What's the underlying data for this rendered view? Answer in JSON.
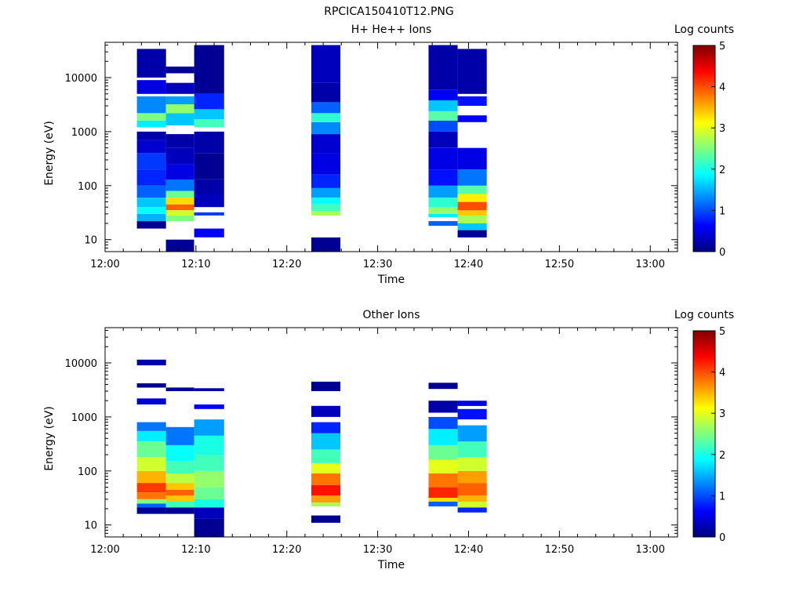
{
  "title": "RPCICA150410T12.PNG",
  "colorscale": [
    "#00007f",
    "#0000ff",
    "#007fff",
    "#00ffff",
    "#7fff7f",
    "#ffff00",
    "#ff7f00",
    "#ff0000",
    "#7f0000"
  ],
  "chart_data": [
    {
      "type": "heatmap",
      "title": "H+ He++ Ions",
      "xlabel": "Time",
      "ylabel": "Energy (eV)",
      "xticks": [
        "12:00",
        "12:10",
        "12:20",
        "12:30",
        "12:40",
        "12:50",
        "13:00"
      ],
      "xlim": [
        "12:00",
        "13:03"
      ],
      "ylog": true,
      "yticks": [
        "10",
        "100",
        "1000",
        "10000"
      ],
      "ylim": [
        6,
        45000
      ],
      "colorbar": {
        "label": "Log counts",
        "range": [
          0,
          5
        ],
        "ticks": [
          "0",
          "1",
          "2",
          "3",
          "4",
          "5"
        ]
      },
      "columns": [
        {
          "start": "12:03.5",
          "end": "12:06.7",
          "cells": [
            {
              "emin": 16,
              "emax": 22,
              "v": 0.1
            },
            {
              "emin": 22,
              "emax": 30,
              "v": 1.5
            },
            {
              "emin": 30,
              "emax": 40,
              "v": 1.9
            },
            {
              "emin": 40,
              "emax": 60,
              "v": 1.6
            },
            {
              "emin": 60,
              "emax": 100,
              "v": 1.1
            },
            {
              "emin": 100,
              "emax": 200,
              "v": 0.8
            },
            {
              "emin": 200,
              "emax": 400,
              "v": 0.9
            },
            {
              "emin": 400,
              "emax": 700,
              "v": 0.4
            },
            {
              "emin": 700,
              "emax": 1000,
              "v": 0.2
            },
            {
              "emin": 1200,
              "emax": 1600,
              "v": 1.8
            },
            {
              "emin": 1600,
              "emax": 2200,
              "v": 2.5
            },
            {
              "emin": 2200,
              "emax": 4500,
              "v": 1.3
            },
            {
              "emin": 5000,
              "emax": 9000,
              "v": 0.5
            },
            {
              "emin": 10000,
              "emax": 34000,
              "v": 0.2
            }
          ]
        },
        {
          "start": "12:06.7",
          "end": "12:09.8",
          "cells": [
            {
              "emin": 6,
              "emax": 10,
              "v": 0.1
            },
            {
              "emin": 22,
              "emax": 28,
              "v": 2.5
            },
            {
              "emin": 28,
              "emax": 35,
              "v": 2.9
            },
            {
              "emin": 35,
              "emax": 45,
              "v": 3.9
            },
            {
              "emin": 45,
              "emax": 60,
              "v": 3.3
            },
            {
              "emin": 60,
              "emax": 80,
              "v": 2.4
            },
            {
              "emin": 80,
              "emax": 130,
              "v": 1.2
            },
            {
              "emin": 130,
              "emax": 250,
              "v": 0.5
            },
            {
              "emin": 250,
              "emax": 500,
              "v": 0.3
            },
            {
              "emin": 500,
              "emax": 900,
              "v": 0.2
            },
            {
              "emin": 1300,
              "emax": 2200,
              "v": 1.6
            },
            {
              "emin": 2200,
              "emax": 3200,
              "v": 2.6
            },
            {
              "emin": 3200,
              "emax": 4500,
              "v": 1.4
            },
            {
              "emin": 5000,
              "emax": 8000,
              "v": 0.3
            },
            {
              "emin": 12000,
              "emax": 16000,
              "v": 0.1
            }
          ]
        },
        {
          "start": "12:09.8",
          "end": "12:13.1",
          "cells": [
            {
              "emin": 11,
              "emax": 16,
              "v": 0.6
            },
            {
              "emin": 28,
              "emax": 32,
              "v": 0.9
            },
            {
              "emin": 40,
              "emax": 70,
              "v": 0.3
            },
            {
              "emin": 70,
              "emax": 130,
              "v": 0.2
            },
            {
              "emin": 130,
              "emax": 400,
              "v": 0.1
            },
            {
              "emin": 400,
              "emax": 1000,
              "v": 0.2
            },
            {
              "emin": 1200,
              "emax": 1700,
              "v": 2.2
            },
            {
              "emin": 1700,
              "emax": 2600,
              "v": 1.6
            },
            {
              "emin": 2600,
              "emax": 5000,
              "v": 0.8
            },
            {
              "emin": 5000,
              "emax": 40000,
              "v": 0.1
            }
          ]
        },
        {
          "start": "12:22.7",
          "end": "12:25.9",
          "cells": [
            {
              "emin": 6,
              "emax": 11,
              "v": 0.1
            },
            {
              "emin": 28,
              "emax": 34,
              "v": 2.7
            },
            {
              "emin": 34,
              "emax": 45,
              "v": 2.2
            },
            {
              "emin": 45,
              "emax": 60,
              "v": 1.9
            },
            {
              "emin": 60,
              "emax": 90,
              "v": 1.4
            },
            {
              "emin": 90,
              "emax": 160,
              "v": 0.8
            },
            {
              "emin": 160,
              "emax": 400,
              "v": 0.5
            },
            {
              "emin": 400,
              "emax": 900,
              "v": 0.4
            },
            {
              "emin": 900,
              "emax": 1500,
              "v": 1.3
            },
            {
              "emin": 1500,
              "emax": 2200,
              "v": 2.1
            },
            {
              "emin": 2200,
              "emax": 3500,
              "v": 1.1
            },
            {
              "emin": 3500,
              "emax": 8000,
              "v": 0.2
            },
            {
              "emin": 8000,
              "emax": 40000,
              "v": 0.3
            }
          ]
        },
        {
          "start": "12:35.6",
          "end": "12:38.8",
          "cells": [
            {
              "emin": 18,
              "emax": 22,
              "v": 1.1
            },
            {
              "emin": 26,
              "emax": 30,
              "v": 1.8
            },
            {
              "emin": 30,
              "emax": 40,
              "v": 2.6
            },
            {
              "emin": 40,
              "emax": 60,
              "v": 2.1
            },
            {
              "emin": 60,
              "emax": 100,
              "v": 1.4
            },
            {
              "emin": 100,
              "emax": 200,
              "v": 0.7
            },
            {
              "emin": 200,
              "emax": 500,
              "v": 0.5
            },
            {
              "emin": 500,
              "emax": 1000,
              "v": 0.3
            },
            {
              "emin": 1000,
              "emax": 1600,
              "v": 1.0
            },
            {
              "emin": 1600,
              "emax": 2400,
              "v": 2.3
            },
            {
              "emin": 2400,
              "emax": 3800,
              "v": 1.6
            },
            {
              "emin": 3800,
              "emax": 6000,
              "v": 0.6
            },
            {
              "emin": 6000,
              "emax": 40000,
              "v": 0.2
            }
          ]
        },
        {
          "start": "12:38.8",
          "end": "12:42.0",
          "cells": [
            {
              "emin": 11,
              "emax": 15,
              "v": 0.1
            },
            {
              "emin": 15,
              "emax": 20,
              "v": 1.6
            },
            {
              "emin": 20,
              "emax": 28,
              "v": 2.7
            },
            {
              "emin": 28,
              "emax": 35,
              "v": 3.4
            },
            {
              "emin": 35,
              "emax": 50,
              "v": 4.0
            },
            {
              "emin": 50,
              "emax": 70,
              "v": 3.2
            },
            {
              "emin": 70,
              "emax": 100,
              "v": 2.3
            },
            {
              "emin": 100,
              "emax": 200,
              "v": 1.2
            },
            {
              "emin": 200,
              "emax": 500,
              "v": 0.5
            },
            {
              "emin": 1500,
              "emax": 2000,
              "v": 0.6
            },
            {
              "emin": 3000,
              "emax": 4500,
              "v": 0.7
            },
            {
              "emin": 5000,
              "emax": 34000,
              "v": 0.2
            }
          ]
        }
      ]
    },
    {
      "type": "heatmap",
      "title": "Other Ions",
      "xlabel": "Time",
      "ylabel": "Energy (eV)",
      "xticks": [
        "12:00",
        "12:10",
        "12:20",
        "12:30",
        "12:40",
        "12:50",
        "13:00"
      ],
      "xlim": [
        "12:00",
        "13:03"
      ],
      "ylog": true,
      "yticks": [
        "10",
        "100",
        "1000",
        "10000"
      ],
      "ylim": [
        6,
        45000
      ],
      "colorbar": {
        "label": "Log counts",
        "range": [
          0,
          5
        ],
        "ticks": [
          "0",
          "1",
          "2",
          "3",
          "4",
          "5"
        ]
      },
      "columns": [
        {
          "start": "12:03.5",
          "end": "12:06.7",
          "cells": [
            {
              "emin": 16,
              "emax": 21,
              "v": 0.1
            },
            {
              "emin": 21,
              "emax": 25,
              "v": 1.1
            },
            {
              "emin": 25,
              "emax": 30,
              "v": 2.5
            },
            {
              "emin": 30,
              "emax": 40,
              "v": 3.8
            },
            {
              "emin": 40,
              "emax": 60,
              "v": 4.1
            },
            {
              "emin": 60,
              "emax": 100,
              "v": 3.5
            },
            {
              "emin": 100,
              "emax": 180,
              "v": 2.9
            },
            {
              "emin": 180,
              "emax": 350,
              "v": 2.4
            },
            {
              "emin": 350,
              "emax": 550,
              "v": 1.8
            },
            {
              "emin": 550,
              "emax": 800,
              "v": 1.2
            },
            {
              "emin": 1700,
              "emax": 2200,
              "v": 0.4
            },
            {
              "emin": 3500,
              "emax": 4200,
              "v": 0.1
            },
            {
              "emin": 9000,
              "emax": 11500,
              "v": 0.2
            }
          ]
        },
        {
          "start": "12:06.7",
          "end": "12:09.8",
          "cells": [
            {
              "emin": 16,
              "emax": 21,
              "v": 0.1
            },
            {
              "emin": 21,
              "emax": 27,
              "v": 2.2
            },
            {
              "emin": 27,
              "emax": 35,
              "v": 3.4
            },
            {
              "emin": 35,
              "emax": 45,
              "v": 3.9
            },
            {
              "emin": 45,
              "emax": 60,
              "v": 3.4
            },
            {
              "emin": 60,
              "emax": 90,
              "v": 2.8
            },
            {
              "emin": 90,
              "emax": 150,
              "v": 2.2
            },
            {
              "emin": 150,
              "emax": 300,
              "v": 1.9
            },
            {
              "emin": 300,
              "emax": 650,
              "v": 1.2
            },
            {
              "emin": 3000,
              "emax": 3500,
              "v": 0.1
            }
          ]
        },
        {
          "start": "12:09.8",
          "end": "12:13.1",
          "cells": [
            {
              "emin": 6,
              "emax": 13,
              "v": 0.1
            },
            {
              "emin": 13,
              "emax": 21,
              "v": 0.3
            },
            {
              "emin": 21,
              "emax": 30,
              "v": 2.0
            },
            {
              "emin": 30,
              "emax": 50,
              "v": 2.4
            },
            {
              "emin": 50,
              "emax": 100,
              "v": 2.6
            },
            {
              "emin": 100,
              "emax": 200,
              "v": 2.2
            },
            {
              "emin": 200,
              "emax": 450,
              "v": 2.0
            },
            {
              "emin": 450,
              "emax": 900,
              "v": 1.4
            },
            {
              "emin": 1400,
              "emax": 1700,
              "v": 0.6
            },
            {
              "emin": 3000,
              "emax": 3400,
              "v": 0.2
            }
          ]
        },
        {
          "start": "12:22.7",
          "end": "12:25.9",
          "cells": [
            {
              "emin": 11,
              "emax": 15,
              "v": 0.1
            },
            {
              "emin": 22,
              "emax": 26,
              "v": 2.7
            },
            {
              "emin": 26,
              "emax": 35,
              "v": 3.6
            },
            {
              "emin": 35,
              "emax": 55,
              "v": 4.3
            },
            {
              "emin": 55,
              "emax": 90,
              "v": 3.8
            },
            {
              "emin": 90,
              "emax": 140,
              "v": 3.0
            },
            {
              "emin": 140,
              "emax": 250,
              "v": 2.2
            },
            {
              "emin": 250,
              "emax": 500,
              "v": 1.6
            },
            {
              "emin": 500,
              "emax": 800,
              "v": 0.8
            },
            {
              "emin": 1000,
              "emax": 1600,
              "v": 0.3
            },
            {
              "emin": 3000,
              "emax": 4500,
              "v": 0.1
            }
          ]
        },
        {
          "start": "12:35.6",
          "end": "12:38.8",
          "cells": [
            {
              "emin": 22,
              "emax": 27,
              "v": 1.1
            },
            {
              "emin": 27,
              "emax": 32,
              "v": 3.3
            },
            {
              "emin": 32,
              "emax": 50,
              "v": 4.2
            },
            {
              "emin": 50,
              "emax": 90,
              "v": 3.8
            },
            {
              "emin": 90,
              "emax": 160,
              "v": 3.0
            },
            {
              "emin": 160,
              "emax": 300,
              "v": 2.4
            },
            {
              "emin": 300,
              "emax": 600,
              "v": 1.8
            },
            {
              "emin": 600,
              "emax": 1000,
              "v": 1.0
            },
            {
              "emin": 1200,
              "emax": 2000,
              "v": 0.2
            },
            {
              "emin": 3300,
              "emax": 4300,
              "v": 0.1
            }
          ]
        },
        {
          "start": "12:38.8",
          "end": "12:42.0",
          "cells": [
            {
              "emin": 17,
              "emax": 21,
              "v": 0.8
            },
            {
              "emin": 21,
              "emax": 27,
              "v": 2.9
            },
            {
              "emin": 27,
              "emax": 35,
              "v": 3.5
            },
            {
              "emin": 35,
              "emax": 60,
              "v": 3.9
            },
            {
              "emin": 60,
              "emax": 100,
              "v": 3.6
            },
            {
              "emin": 100,
              "emax": 180,
              "v": 2.9
            },
            {
              "emin": 180,
              "emax": 350,
              "v": 2.2
            },
            {
              "emin": 350,
              "emax": 700,
              "v": 1.4
            },
            {
              "emin": 900,
              "emax": 1400,
              "v": 0.7
            },
            {
              "emin": 1600,
              "emax": 2000,
              "v": 0.5
            }
          ]
        }
      ]
    }
  ]
}
